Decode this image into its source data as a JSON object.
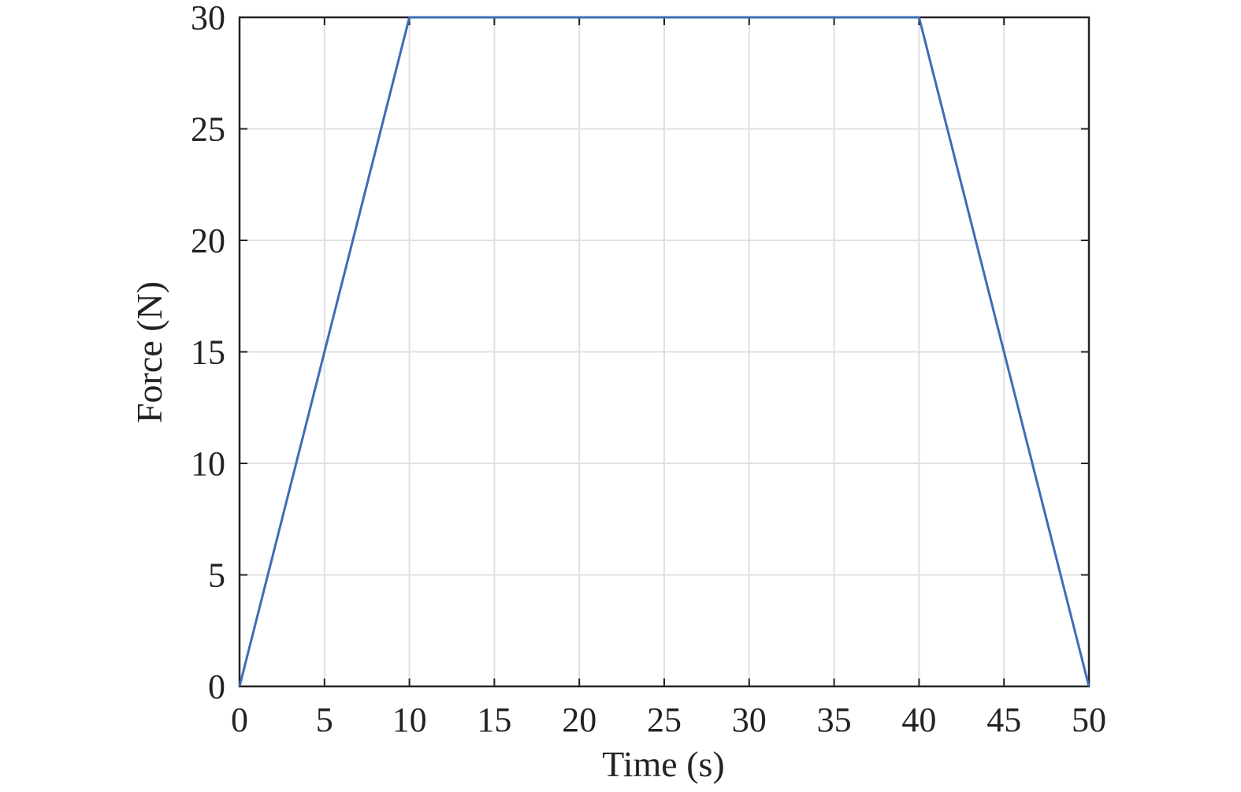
{
  "chart_data": {
    "type": "line",
    "x_label": "Time (s)",
    "y_label": "Force (N)",
    "x": [
      0,
      10,
      40,
      50
    ],
    "series": [
      {
        "name": null,
        "color": "#3d6db5",
        "values": [
          0,
          30,
          30,
          0
        ]
      }
    ],
    "xlim": [
      0,
      50
    ],
    "xticks": [
      0,
      5,
      10,
      15,
      20,
      25,
      30,
      35,
      40,
      45,
      50
    ],
    "ylim": [
      0,
      30
    ],
    "yticks": [
      0,
      5,
      10,
      15,
      20,
      25,
      30
    ],
    "grid": true
  }
}
